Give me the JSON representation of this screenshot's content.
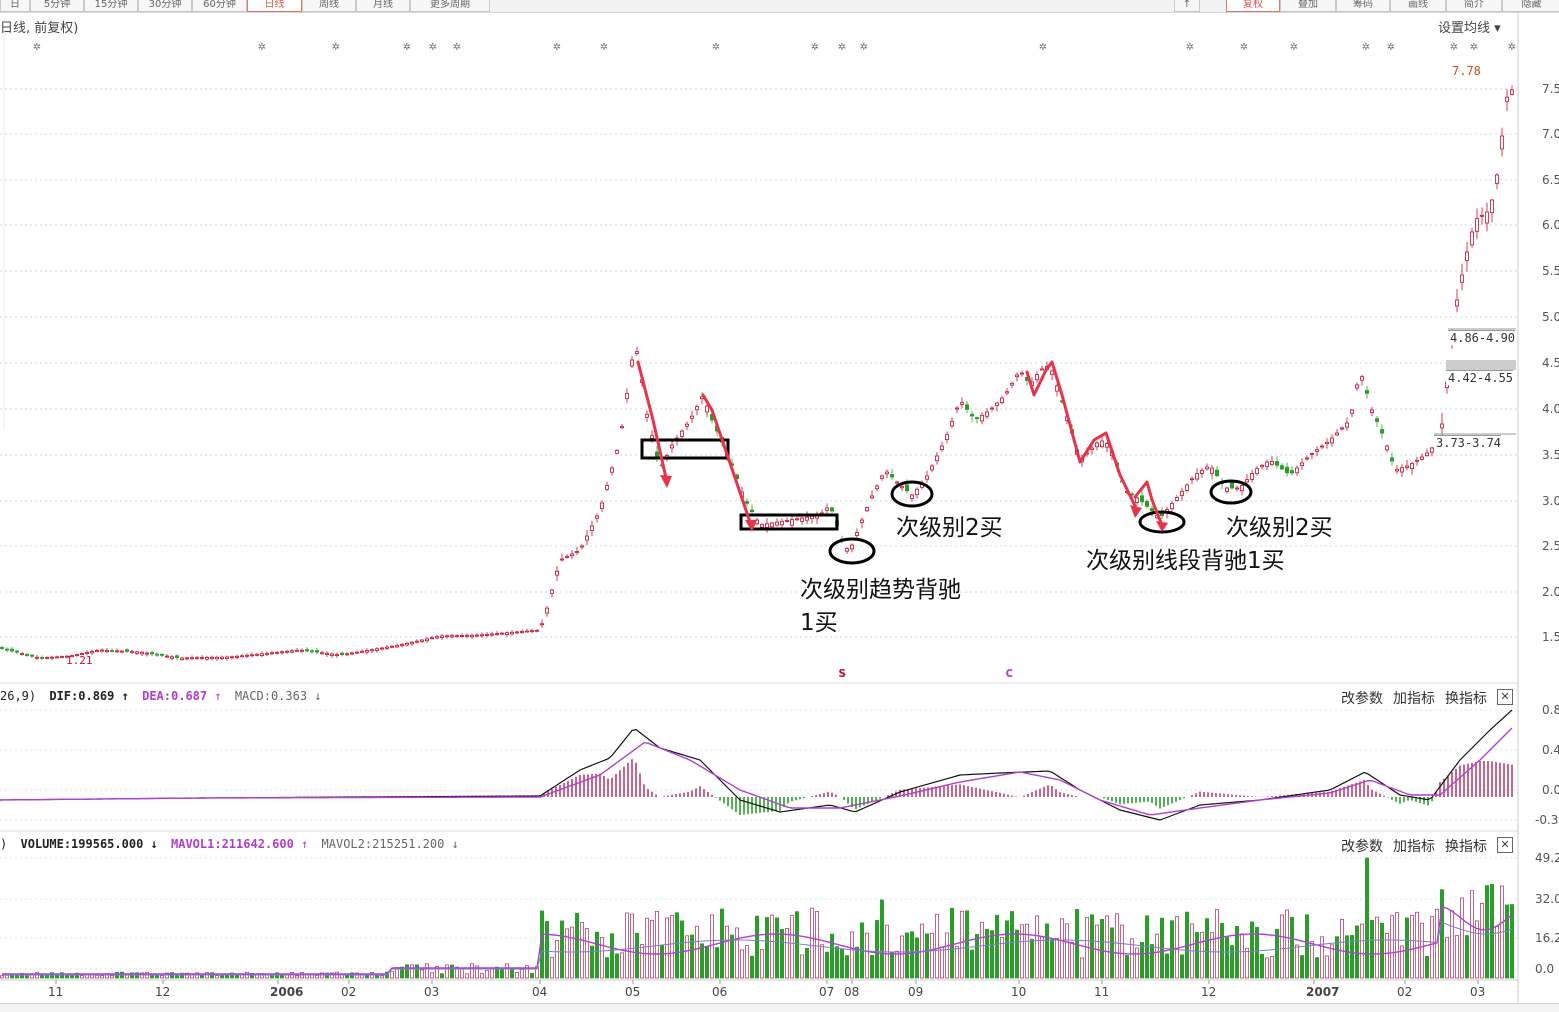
{
  "toolbar": {
    "left_tabs": [
      "日",
      "5分钟",
      "15分钟",
      "30分钟",
      "60分钟",
      "日线",
      "周线",
      "月线",
      "更多周期"
    ],
    "active_tab": "日线",
    "right_tabs": [
      "↑",
      "复权",
      "叠加",
      "筹码",
      "画线",
      "简介",
      "隐藏"
    ]
  },
  "header": {
    "title": "日线, 前复权)",
    "ma_settings": "设置均线 ▾"
  },
  "price_panel": {
    "y_labels": [
      "7.5",
      "7.0",
      "6.5",
      "6.0",
      "5.5",
      "5.0",
      "4.5",
      "4.0",
      "3.5",
      "3.0",
      "2.5",
      "2.0",
      "1.5"
    ],
    "high_label": "7.78",
    "low_label": "1.21",
    "price_boxes": [
      "4.86-4.90",
      "4.42-4.55",
      "3.73-3.74"
    ],
    "markers": [
      "s",
      "c"
    ],
    "annotations": {
      "trend_divergence": "次级别趋势背驰",
      "buy1": "1买",
      "second_buy_a": "次级别2买",
      "segment_divergence": "次级别线段背驰1买",
      "second_buy_b": "次级别2买"
    }
  },
  "macd_panel": {
    "prefix": "26,9)",
    "dif": "DIF:0.869",
    "dea": "DEA:0.687",
    "macd": "MACD:0.363",
    "arrow_up": "↑",
    "arrow_down": "↓",
    "y_labels": [
      "0.8",
      "0.4",
      "0.0",
      "-0.3"
    ],
    "buttons": [
      "改参数",
      "加指标",
      "换指标"
    ],
    "close": "✕"
  },
  "volume_panel": {
    "prefix": ")",
    "volume": "VOLUME:199565.000",
    "mavol1": "MAVOL1:211642.600",
    "mavol2": "MAVOL2:215251.200",
    "arrow_up": "↑",
    "arrow_down": "↓",
    "y_labels": [
      "49.2",
      "32.0",
      "16.2",
      "0.0"
    ],
    "buttons": [
      "改参数",
      "加指标",
      "换指标"
    ],
    "close": "✕"
  },
  "x_axis": {
    "labels": [
      "11",
      "12",
      "2006",
      "02",
      "03",
      "04",
      "05",
      "06",
      "07",
      "08",
      "09",
      "10",
      "11",
      "12",
      "2007",
      "02",
      "03"
    ],
    "bold": [
      "2006",
      "2007"
    ]
  },
  "colors": {
    "up": "#c8102e",
    "down": "#2a9d2a",
    "dif": "#111111",
    "dea": "#b040d0",
    "mavol1": "#b040d0",
    "mavol2": "#7a7acc",
    "annotation_arrow": "#e8344a"
  }
}
